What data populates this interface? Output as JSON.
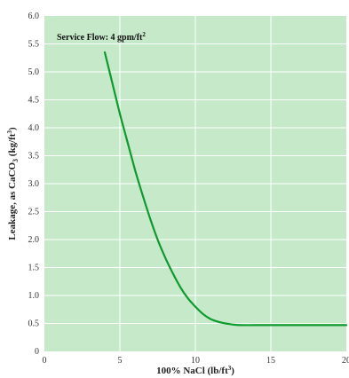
{
  "chart_data": {
    "type": "line",
    "title": "",
    "annotation": {
      "text": "Service Flow: 4 gpm/ft",
      "sup": "2"
    },
    "xlabel": {
      "main": "100% NaCl (lb/ft",
      "sup": "3",
      "tail": ")"
    },
    "ylabel": {
      "part1": "Leakage, as CaCO",
      "sub": "3",
      "part2": " (kg/ft",
      "sup": "3",
      "tail": ")"
    },
    "xlim": [
      0,
      20
    ],
    "ylim": [
      0,
      6.0
    ],
    "xticks": [
      "0",
      "5",
      "10",
      "15",
      "20"
    ],
    "yticks": [
      "0",
      "0.5",
      "1.0",
      "1.5",
      "2.0",
      "2.5",
      "3.0",
      "3.5",
      "4.0",
      "4.5",
      "5.0",
      "5.5",
      "6.0"
    ],
    "grid": true,
    "colors": {
      "plot_bg": "#c5e9c9",
      "grid": "#ffffff",
      "line": "#0f9a2f"
    },
    "series": [
      {
        "x": [
          4.0,
          4.5,
          5.0,
          5.5,
          6.0,
          6.5,
          7.0,
          7.5,
          8.0,
          8.5,
          9.0,
          9.5,
          10.0,
          10.5,
          11.0,
          11.5,
          12.0,
          12.5,
          13.0,
          14.0,
          15.0,
          16.0,
          17.0,
          18.0,
          19.0,
          20.0
        ],
        "y": [
          5.35,
          4.8,
          4.25,
          3.75,
          3.25,
          2.8,
          2.38,
          2.0,
          1.68,
          1.4,
          1.15,
          0.95,
          0.8,
          0.67,
          0.58,
          0.53,
          0.5,
          0.48,
          0.47,
          0.47,
          0.47,
          0.47,
          0.47,
          0.47,
          0.47,
          0.47
        ]
      }
    ]
  }
}
